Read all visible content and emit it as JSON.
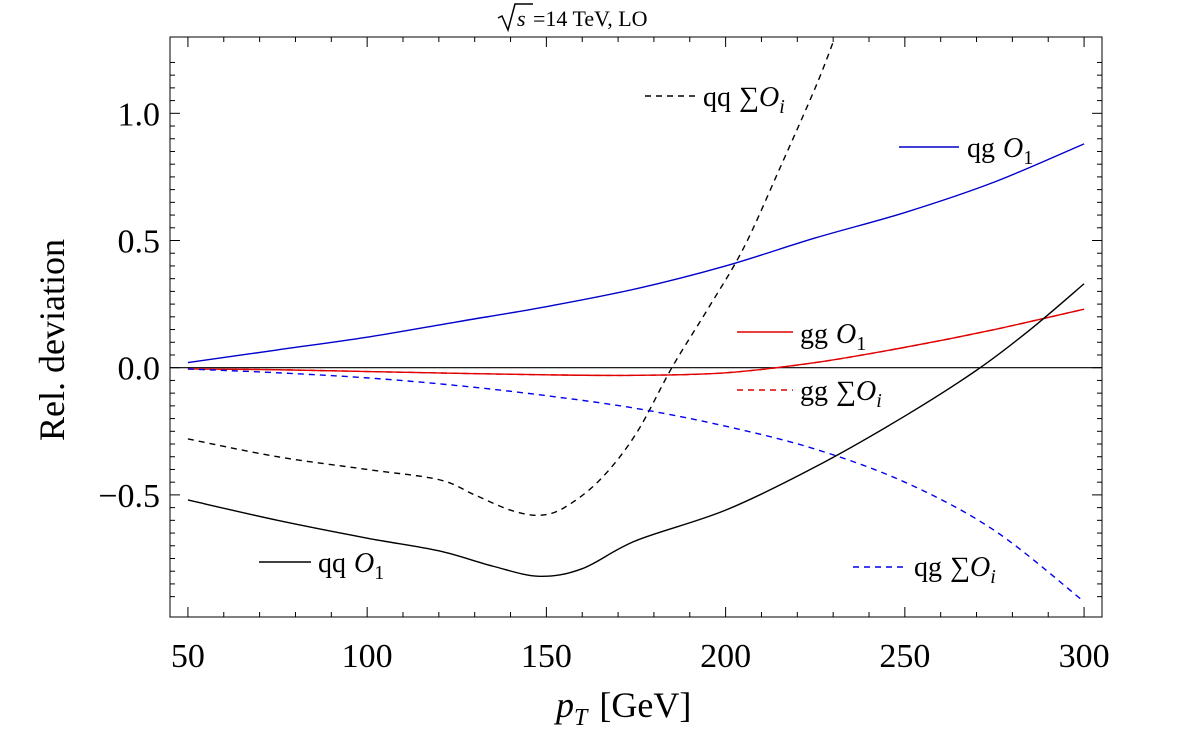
{
  "chart_data": {
    "type": "line",
    "title_prefix": "s",
    "title_text": "=14 TeV, LO",
    "xlabel_var": "p",
    "xlabel_sub": "T",
    "xlabel_unit": "[GeV]",
    "ylabel": "Rel. deviation",
    "xlim": [
      45,
      305
    ],
    "ylim": [
      -0.98,
      1.3
    ],
    "x_ticks": [
      50,
      100,
      150,
      200,
      250,
      300
    ],
    "x_tick_labels": [
      "50",
      "100",
      "150",
      "200",
      "250",
      "300"
    ],
    "y_ticks": [
      -0.5,
      0.0,
      0.5,
      1.0
    ],
    "y_tick_labels": [
      "−0.5",
      "0.0",
      "0.5",
      "1.0"
    ],
    "grid": false,
    "legend_placement": "inline near curves",
    "series": [
      {
        "name": "qg O1",
        "label_main": "qg",
        "label_op": "O",
        "label_sub": "1",
        "color": "#0000cc",
        "dash": "solid",
        "x": [
          50,
          75,
          100,
          125,
          150,
          175,
          200,
          225,
          250,
          275,
          300
        ],
        "y": [
          0.02,
          0.07,
          0.12,
          0.18,
          0.24,
          0.31,
          0.4,
          0.51,
          0.61,
          0.73,
          0.88
        ]
      },
      {
        "name": "qq ∑Oi",
        "label_main": "qq",
        "label_op": "∑O",
        "label_sub": "i",
        "color": "#000000",
        "dash": "dashed",
        "x": [
          50,
          75,
          100,
          120,
          130,
          140,
          148,
          155,
          165,
          175,
          185,
          195,
          205,
          215,
          225,
          230
        ],
        "y": [
          -0.28,
          -0.35,
          -0.4,
          -0.44,
          -0.5,
          -0.56,
          -0.58,
          -0.55,
          -0.44,
          -0.26,
          0.0,
          0.23,
          0.47,
          0.78,
          1.1,
          1.28
        ]
      },
      {
        "name": "gg O1",
        "label_main": "gg",
        "label_op": "O",
        "label_sub": "1",
        "color": "#e00000",
        "dash": "solid",
        "x": [
          50,
          75,
          100,
          125,
          150,
          175,
          200,
          225,
          250,
          275,
          300
        ],
        "y": [
          -0.005,
          -0.008,
          -0.015,
          -0.022,
          -0.028,
          -0.03,
          -0.02,
          0.02,
          0.08,
          0.15,
          0.23
        ]
      },
      {
        "name": "gg ∑Oi",
        "label_main": "gg",
        "label_op": "∑O",
        "label_sub": "i",
        "color": "#e00000",
        "dash": "dashed",
        "x": [
          50,
          75,
          100,
          125,
          150,
          175,
          200,
          225,
          250,
          275,
          300
        ],
        "y": [
          -0.005,
          -0.008,
          -0.015,
          -0.022,
          -0.028,
          -0.03,
          -0.02,
          0.02,
          0.08,
          0.15,
          0.23
        ]
      },
      {
        "name": "qg ∑Oi",
        "label_main": "qg",
        "label_op": "∑O",
        "label_sub": "i",
        "color": "#0000ee",
        "dash": "dashed",
        "x": [
          50,
          75,
          100,
          125,
          150,
          175,
          200,
          225,
          250,
          275,
          300
        ],
        "y": [
          -0.005,
          -0.02,
          -0.04,
          -0.07,
          -0.11,
          -0.16,
          -0.23,
          -0.32,
          -0.45,
          -0.64,
          -0.92
        ]
      },
      {
        "name": "qq O1",
        "label_main": "qq",
        "label_op": "O",
        "label_sub": "1",
        "color": "#000000",
        "dash": "solid",
        "x": [
          50,
          75,
          100,
          120,
          135,
          148,
          160,
          175,
          200,
          225,
          250,
          270,
          285,
          300
        ],
        "y": [
          -0.52,
          -0.6,
          -0.67,
          -0.72,
          -0.78,
          -0.82,
          -0.79,
          -0.68,
          -0.56,
          -0.39,
          -0.19,
          -0.01,
          0.15,
          0.33
        ]
      }
    ]
  }
}
